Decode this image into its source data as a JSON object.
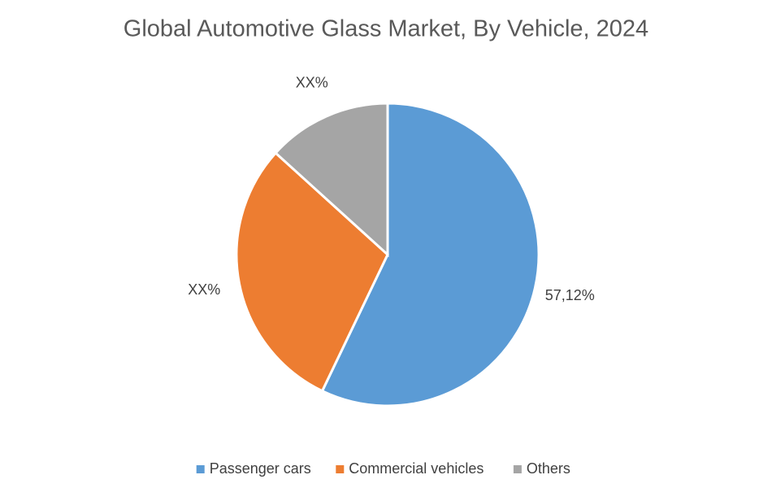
{
  "chart_data": {
    "type": "pie",
    "title": "Global Automotive Glass Market, By Vehicle, 2024",
    "categories": [
      "Passenger cars",
      "Commercial vehicles",
      "Others"
    ],
    "values": [
      57.12,
      29.6,
      13.28
    ],
    "value_labels": [
      "57,12%",
      "XX%",
      "XX%"
    ],
    "colors": [
      "#5b9bd5",
      "#ed7d31",
      "#a5a5a5"
    ],
    "legend": "bottom"
  }
}
